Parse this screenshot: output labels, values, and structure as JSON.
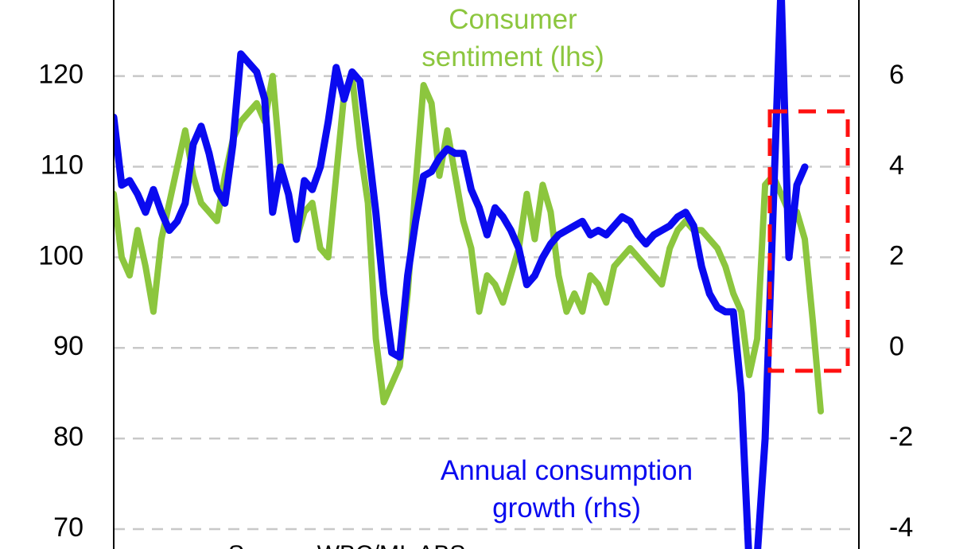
{
  "chart_data": {
    "type": "line",
    "source": "Source: WBC/MI, ABS",
    "ylim": [
      67.8,
      128.4
    ],
    "yticks": [
      70,
      80,
      90,
      100,
      110,
      120
    ],
    "y2lim": [
      -4.44,
      7.69
    ],
    "y2ticks": [
      -4,
      -2,
      0,
      2,
      4,
      6
    ],
    "grid": true,
    "series": [
      {
        "name": "Consumer sentiment (lhs)",
        "color": "#8cc63e",
        "axis": "y",
        "values": [
          107,
          100,
          98,
          103,
          99,
          94,
          102,
          106,
          110,
          114,
          109,
          106,
          105,
          104,
          109,
          113,
          115,
          116,
          117,
          115,
          120,
          110,
          107,
          102,
          105,
          106,
          101,
          100,
          109,
          118,
          120,
          112,
          106,
          91,
          84,
          86,
          88,
          96,
          108,
          119,
          117,
          109,
          114,
          109,
          104,
          101,
          94,
          98,
          97,
          95,
          98,
          101,
          107,
          102,
          108,
          105,
          98,
          94,
          96,
          94,
          98,
          97,
          95,
          99,
          100,
          101,
          100,
          99,
          98,
          97,
          101,
          103,
          104,
          103,
          103,
          102,
          101,
          99,
          96,
          94,
          87,
          91,
          108,
          109,
          107,
          105,
          105,
          102,
          93,
          83
        ]
      },
      {
        "name": "Annual consumption growth (rhs)",
        "color": "#0a0af0",
        "axis": "y2",
        "values": [
          5.1,
          3.6,
          3.7,
          3.4,
          3.0,
          3.5,
          3.0,
          2.6,
          2.8,
          3.2,
          4.5,
          4.9,
          4.3,
          3.5,
          3.2,
          4.5,
          6.5,
          6.3,
          6.1,
          5.5,
          3.0,
          4.0,
          3.4,
          2.4,
          3.7,
          3.5,
          4.0,
          5.0,
          6.2,
          5.5,
          6.1,
          5.9,
          4.5,
          3.0,
          1.2,
          -0.1,
          -0.2,
          1.6,
          2.8,
          3.8,
          3.9,
          4.2,
          4.4,
          4.3,
          4.3,
          3.5,
          3.1,
          2.5,
          3.1,
          2.9,
          2.6,
          2.2,
          1.4,
          1.6,
          2.0,
          2.3,
          2.5,
          2.6,
          2.7,
          2.8,
          2.5,
          2.6,
          2.5,
          2.7,
          2.9,
          2.8,
          2.5,
          2.3,
          2.5,
          2.6,
          2.7,
          2.9,
          3.0,
          2.7,
          1.8,
          1.2,
          0.9,
          0.8,
          0.8,
          -1.0,
          -4.8,
          -4.6,
          -2.0,
          3.0,
          8.0,
          2.0,
          3.6,
          4.0
        ]
      }
    ]
  }
}
